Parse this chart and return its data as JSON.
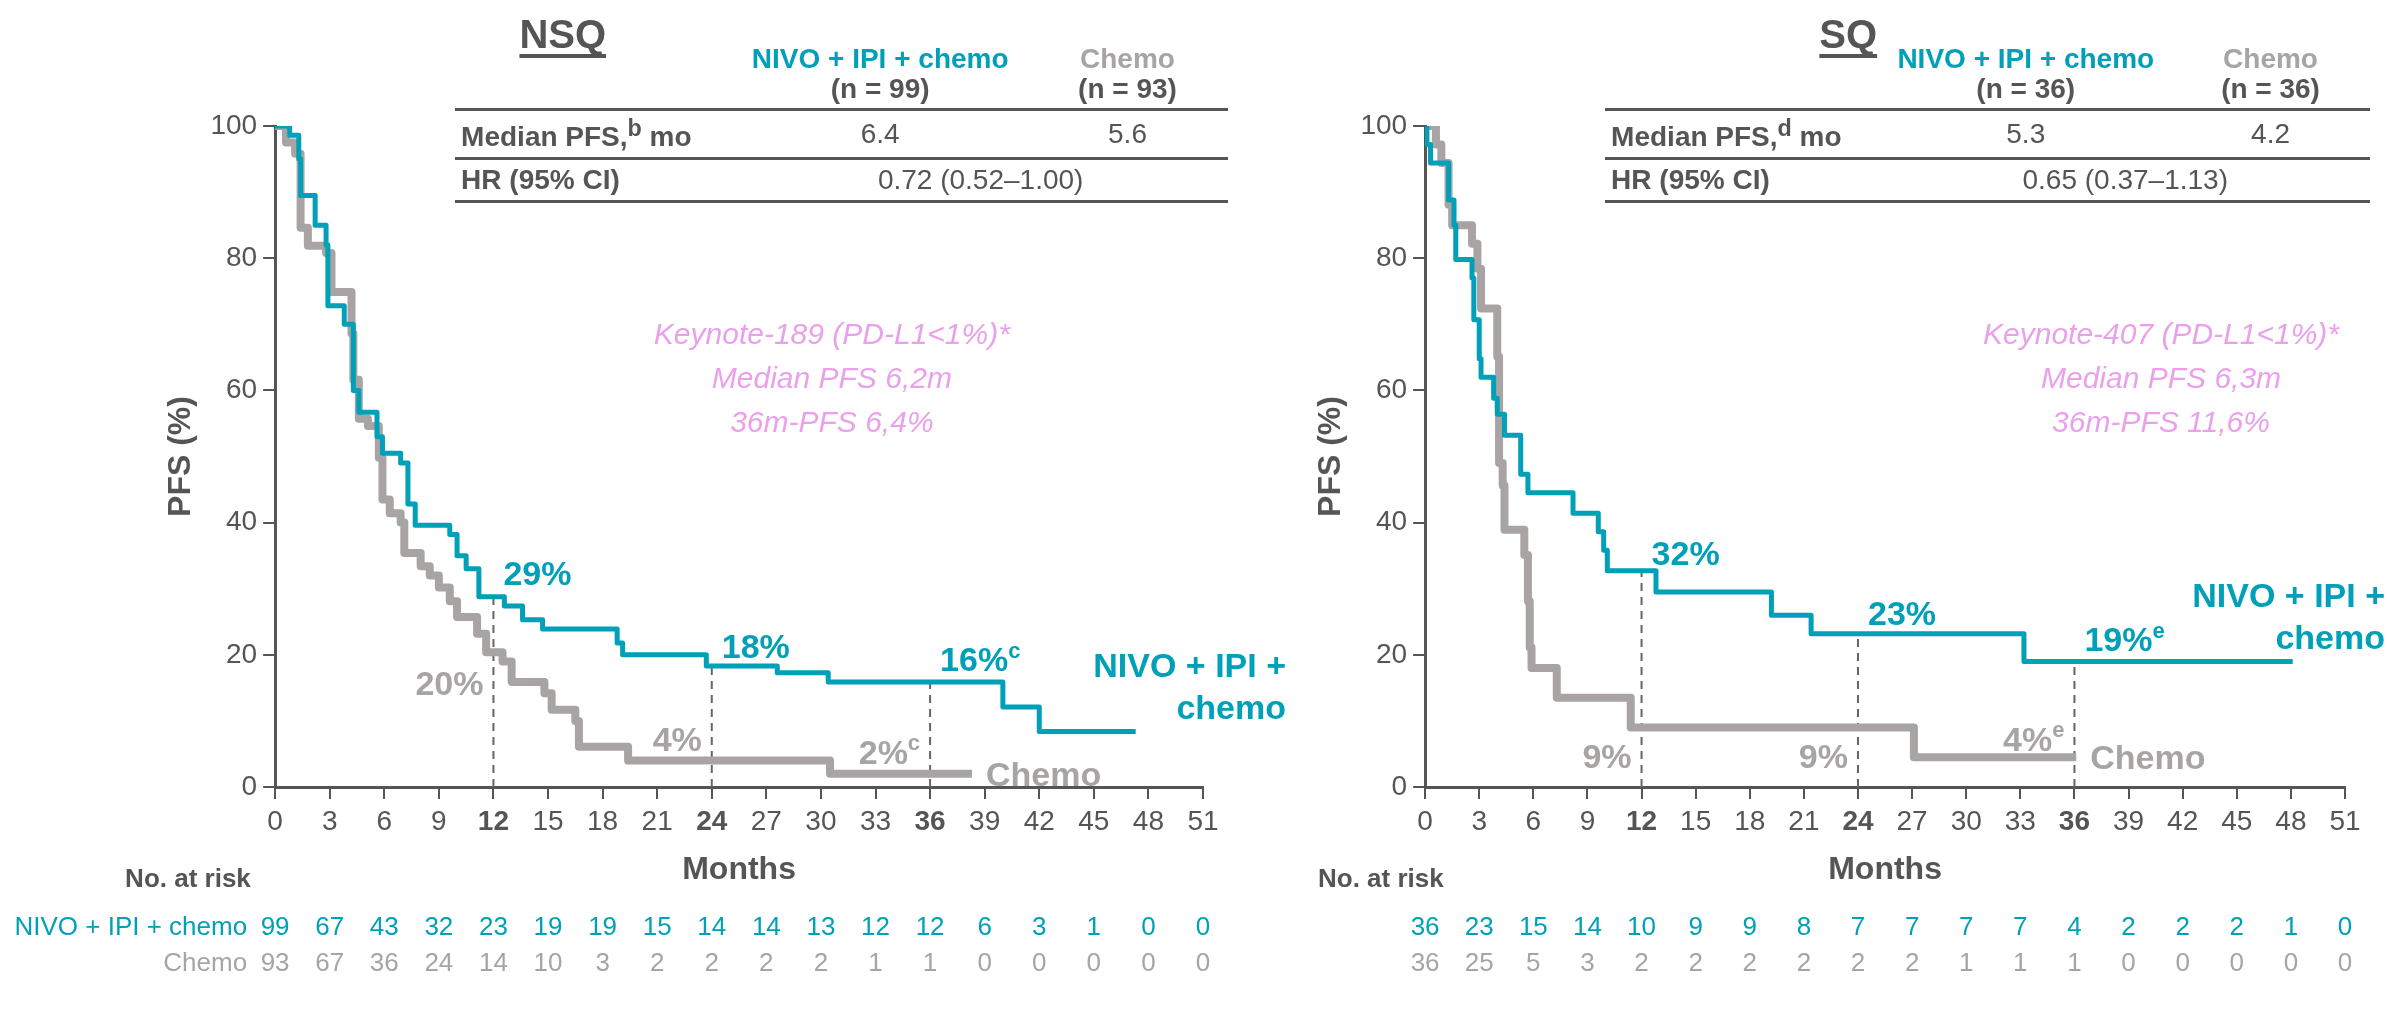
{
  "chart_data": [
    {
      "type": "step",
      "title": "NSQ",
      "xlabel": "Months",
      "ylabel": "PFS (%)",
      "xlim": [
        0,
        51
      ],
      "xticks": [
        0,
        3,
        6,
        9,
        12,
        15,
        18,
        21,
        24,
        27,
        30,
        33,
        36,
        39,
        42,
        45,
        48,
        51
      ],
      "ylim": [
        0,
        100
      ],
      "yticks": [
        0,
        20,
        40,
        60,
        80,
        100
      ],
      "grid": false,
      "legend": false,
      "series": [
        {
          "name": "NIVO + IPI + chemo",
          "color": "#00a0b8",
          "x": [
            0,
            0.8,
            1.3,
            1.4,
            2.2,
            2.8,
            2.9,
            3.8,
            4.3,
            4.6,
            5.6,
            5.9,
            6.9,
            7.3,
            7.7,
            9.6,
            10,
            10.5,
            11.2,
            12.6,
            13.6,
            14.7,
            18.8,
            19.1,
            23.7,
            27.6,
            30.4,
            40,
            42,
            47.3
          ],
          "values": [
            100,
            98.6,
            95,
            89.5,
            85,
            82,
            72.8,
            70,
            60,
            56.7,
            53,
            50.5,
            49,
            42.8,
            39.6,
            38.2,
            35,
            33,
            28.8,
            27.4,
            25.3,
            23.9,
            21.8,
            20,
            18.3,
            17.3,
            15.9,
            12.1,
            8.4,
            8.4
          ]
        },
        {
          "name": "Chemo",
          "color": "#a8a4a4",
          "x": [
            0,
            0.6,
            1.1,
            1.4,
            1.8,
            2.8,
            3.1,
            4.2,
            4.2,
            4.3,
            4.6,
            5.1,
            5.7,
            5.9,
            6.3,
            6.9,
            7.1,
            8,
            8.5,
            9,
            9.6,
            10,
            11.1,
            11.6,
            12.5,
            13,
            14.8,
            15.2,
            16.5,
            16.7,
            19.4,
            30.5,
            38.3
          ],
          "values": [
            100,
            97.5,
            95.8,
            84.6,
            81.9,
            80.8,
            74.9,
            73,
            68.6,
            61.6,
            55.7,
            54.6,
            49.8,
            43.5,
            41.4,
            40,
            35.4,
            33.4,
            32,
            30.2,
            28.1,
            25.7,
            23.2,
            20.4,
            19,
            15.9,
            14.2,
            11.7,
            10,
            6.1,
            4,
            2,
            2
          ]
        }
      ],
      "ref_lines": [
        {
          "axis": "x",
          "value": 12,
          "line_style": "dashed",
          "color": "#666666"
        },
        {
          "axis": "x",
          "value": 24,
          "line_style": "dashed",
          "color": "#666666"
        },
        {
          "axis": "x",
          "value": 36,
          "line_style": "dashed",
          "color": "#666666"
        }
      ],
      "annotations": [
        "(n = 99)",
        "(n = 93)",
        "Median PFS,$^{b}$ mo",
        "6.4",
        "5.6",
        "HR (95% CI)",
        "0.72 (0.52–1.00)",
        "Keynote-189 (PD-L1<1%)*",
        "Median PFS 6,2m",
        "36m-PFS 6,4%",
        "No. at risk",
        "NIVO + IPI + chemo",
        "Chemo",
        "99 67 43 32 23 19 19 15 14 14 13 12 12 6 3 1 0 0",
        "93 67 36 24 14 10 3 2 2 2 2 1 1 0 0 0 0 0",
        {
          "text": "29%",
          "x": 12,
          "y": 29
        },
        {
          "text": "18%",
          "x": 24,
          "y": 18
        },
        {
          "text": "16%$^{c}$",
          "x": 36,
          "y": 16
        },
        {
          "text": "20%",
          "x": 12,
          "y": 20
        },
        {
          "text": "4%",
          "x": 24,
          "y": 4
        },
        {
          "text": "2%$^{c}$",
          "x": 36,
          "y": 2
        }
      ]
    },
    {
      "type": "step",
      "title": "SQ",
      "xlabel": "Months",
      "ylabel": "PFS (%)",
      "xlim": [
        0,
        51
      ],
      "xticks": [
        0,
        3,
        6,
        9,
        12,
        15,
        18,
        21,
        24,
        27,
        30,
        33,
        36,
        39,
        42,
        45,
        48,
        51
      ],
      "ylim": [
        0,
        100
      ],
      "yticks": [
        0,
        20,
        40,
        60,
        80,
        100
      ],
      "grid": false,
      "legend": false,
      "series": [
        {
          "name": "NIVO + IPI + chemo",
          "color": "#00a0b8",
          "x": [
            0,
            0.1,
            0.3,
            1.3,
            1.6,
            1.7,
            2.6,
            2.7,
            3,
            3.1,
            3.8,
            4,
            4.4,
            5.3,
            5.7,
            8.2,
            9.6,
            9.9,
            10.1,
            12.8,
            19.2,
            21.4,
            33.2,
            48.1
          ],
          "values": [
            100,
            97.2,
            94.4,
            88.8,
            85,
            79.8,
            77,
            70.7,
            64.8,
            62,
            58.8,
            56.4,
            53.2,
            47.3,
            44.5,
            41.4,
            38.6,
            35.8,
            32.7,
            29.5,
            26,
            23.2,
            19,
            19
          ]
        },
        {
          "name": "Chemo",
          "color": "#a8a4a4",
          "x": [
            0,
            0.6,
            0.9,
            1.3,
            1.5,
            2.6,
            2.9,
            3.1,
            4,
            4.1,
            4.3,
            4.4,
            5.5,
            5.7,
            5.8,
            5.9,
            7.3,
            11.4,
            27.1,
            36.1
          ],
          "values": [
            100,
            97.2,
            94.4,
            88.1,
            85,
            82.2,
            78.4,
            72.4,
            65.1,
            49,
            45.6,
            38.9,
            35.1,
            28.1,
            21.1,
            18,
            13.5,
            9,
            4.5,
            4.5
          ]
        }
      ],
      "ref_lines": [
        {
          "axis": "x",
          "value": 12,
          "line_style": "dashed",
          "color": "#666666"
        },
        {
          "axis": "x",
          "value": 24,
          "line_style": "dashed",
          "color": "#666666"
        },
        {
          "axis": "x",
          "value": 36,
          "line_style": "dashed",
          "color": "#666666"
        }
      ],
      "annotations": [
        "(n = 36)",
        "(n = 36)",
        "Median PFS,$^{d}$ mo",
        "5.3",
        "4.2",
        "HR (95% CI)",
        "0.65 (0.37–1.13)",
        "Keynote-407 (PD-L1<1%)*",
        "Median PFS 6,3m",
        "36m-PFS 11,6%",
        "No. at risk",
        "36 23 15 14 10 9 9 8 7 7 7 7 4 2 2 2 1 0",
        "36 25 5 3 2 2 2 2 2 2 1 1 1 0 0 0 0 0",
        {
          "text": "32%",
          "x": 12,
          "y": 32
        },
        {
          "text": "23%",
          "x": 24,
          "y": 23
        },
        {
          "text": "19%$^{e}$",
          "x": 36,
          "y": 19
        },
        {
          "text": "9%",
          "x": 12,
          "y": 9
        },
        {
          "text": "9%",
          "x": 24,
          "y": 9
        },
        {
          "text": "4%$^{e}$",
          "x": 36,
          "y": 4
        }
      ]
    }
  ]
}
